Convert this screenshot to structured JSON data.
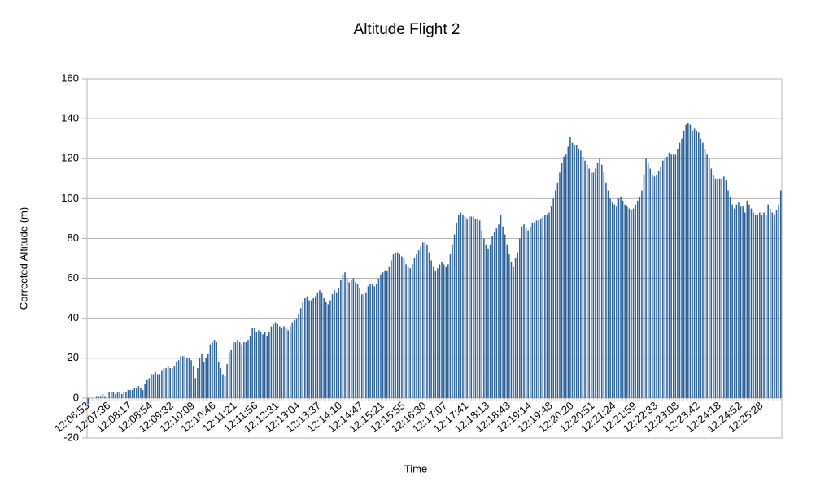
{
  "chart_data": {
    "type": "bar",
    "title": "Altitude Flight 2",
    "x_label": "Time",
    "y_label": "Corrected Altitude (m)",
    "color": "#2a6099",
    "grid": true,
    "ylim": [
      -20,
      160
    ],
    "yticks": [
      -20,
      0,
      20,
      40,
      60,
      80,
      100,
      120,
      140,
      160
    ],
    "categories": [
      "12:06:53",
      null,
      null,
      null,
      null,
      null,
      null,
      null,
      null,
      null,
      "12:07:36",
      null,
      null,
      null,
      null,
      null,
      null,
      null,
      null,
      null,
      "12:08:17",
      null,
      null,
      null,
      null,
      null,
      null,
      null,
      null,
      null,
      "12:08:54",
      null,
      null,
      null,
      null,
      null,
      null,
      null,
      null,
      null,
      "12:09:32",
      null,
      null,
      null,
      null,
      null,
      null,
      null,
      null,
      null,
      "12:10:09",
      null,
      null,
      null,
      null,
      null,
      null,
      null,
      null,
      null,
      "12:10:46",
      null,
      null,
      null,
      null,
      null,
      null,
      null,
      null,
      null,
      "12:11:21",
      null,
      null,
      null,
      null,
      null,
      null,
      null,
      null,
      null,
      "12:11:56",
      null,
      null,
      null,
      null,
      null,
      null,
      null,
      null,
      null,
      "12:12:31",
      null,
      null,
      null,
      null,
      null,
      null,
      null,
      null,
      null,
      "12:13:04",
      null,
      null,
      null,
      null,
      null,
      null,
      null,
      null,
      null,
      "12:13:37",
      null,
      null,
      null,
      null,
      null,
      null,
      null,
      null,
      null,
      "12:14:10",
      null,
      null,
      null,
      null,
      null,
      null,
      null,
      null,
      null,
      "12:14:47",
      null,
      null,
      null,
      null,
      null,
      null,
      null,
      null,
      null,
      "12:15:21",
      null,
      null,
      null,
      null,
      null,
      null,
      null,
      null,
      null,
      "12:15:55",
      null,
      null,
      null,
      null,
      null,
      null,
      null,
      null,
      null,
      "12:16:30",
      null,
      null,
      null,
      null,
      null,
      null,
      null,
      null,
      null,
      "12:17:07",
      null,
      null,
      null,
      null,
      null,
      null,
      null,
      null,
      null,
      "12:17:41",
      null,
      null,
      null,
      null,
      null,
      null,
      null,
      null,
      null,
      "12:18:13",
      null,
      null,
      null,
      null,
      null,
      null,
      null,
      null,
      null,
      "12:18:43",
      null,
      null,
      null,
      null,
      null,
      null,
      null,
      null,
      null,
      "12:19:14",
      null,
      null,
      null,
      null,
      null,
      null,
      null,
      null,
      null,
      "12:19:48",
      null,
      null,
      null,
      null,
      null,
      null,
      null,
      null,
      null,
      "12:20:20",
      null,
      null,
      null,
      null,
      null,
      null,
      null,
      null,
      null,
      "12:20:51",
      null,
      null,
      null,
      null,
      null,
      null,
      null,
      null,
      null,
      "12:21:24",
      null,
      null,
      null,
      null,
      null,
      null,
      null,
      null,
      null,
      "12:21:59",
      null,
      null,
      null,
      null,
      null,
      null,
      null,
      null,
      null,
      "12:22:33",
      null,
      null,
      null,
      null,
      null,
      null,
      null,
      null,
      null,
      "12:23:08",
      null,
      null,
      null,
      null,
      null,
      null,
      null,
      null,
      null,
      "12:23:42",
      null,
      null,
      null,
      null,
      null,
      null,
      null,
      null,
      null,
      "12:24:18",
      null,
      null,
      null,
      null,
      null,
      null,
      null,
      null,
      null,
      "12:24:52",
      null,
      null,
      null,
      null,
      null,
      null,
      null,
      null,
      null,
      "12:25:28",
      null,
      null,
      null,
      null,
      null,
      null,
      null,
      null,
      null
    ],
    "values": [
      -3,
      0,
      0,
      0,
      1,
      1,
      1,
      2,
      1,
      0,
      3,
      3,
      3,
      2,
      3,
      3,
      2,
      3,
      3,
      4,
      4,
      4,
      5,
      5,
      6,
      5,
      4,
      7,
      9,
      10,
      12,
      12,
      13,
      12,
      12,
      14,
      15,
      15,
      16,
      15,
      15,
      16,
      18,
      19,
      21,
      21,
      21,
      20,
      20,
      19,
      16,
      10,
      15,
      20,
      22,
      18,
      20,
      22,
      27,
      28,
      29,
      28,
      18,
      15,
      12,
      11,
      17,
      23,
      24,
      28,
      28,
      29,
      28,
      27,
      28,
      28,
      29,
      31,
      35,
      35,
      33,
      34,
      33,
      32,
      33,
      31,
      33,
      36,
      37,
      38,
      37,
      36,
      35,
      36,
      35,
      34,
      36,
      38,
      39,
      40,
      42,
      45,
      48,
      50,
      51,
      49,
      49,
      50,
      51,
      53,
      54,
      53,
      50,
      48,
      47,
      49,
      52,
      54,
      53,
      55,
      59,
      62,
      63,
      60,
      58,
      59,
      60,
      58,
      57,
      55,
      52,
      52,
      53,
      56,
      57,
      57,
      56,
      57,
      60,
      62,
      63,
      64,
      64,
      66,
      69,
      72,
      73,
      73,
      72,
      71,
      70,
      67,
      66,
      65,
      67,
      70,
      72,
      74,
      76,
      78,
      78,
      77,
      73,
      69,
      66,
      64,
      65,
      67,
      68,
      67,
      66,
      67,
      72,
      77,
      82,
      88,
      92,
      93,
      92,
      91,
      90,
      91,
      91,
      91,
      90,
      90,
      89,
      84,
      80,
      77,
      75,
      77,
      81,
      83,
      85,
      87,
      92,
      86,
      82,
      77,
      72,
      68,
      66,
      70,
      73,
      80,
      86,
      87,
      85,
      84,
      86,
      88,
      88,
      89,
      89,
      90,
      91,
      92,
      92,
      93,
      96,
      100,
      104,
      108,
      113,
      118,
      121,
      122,
      126,
      131,
      128,
      127,
      127,
      125,
      124,
      121,
      119,
      117,
      115,
      113,
      113,
      115,
      118,
      120,
      117,
      113,
      108,
      104,
      100,
      98,
      97,
      96,
      100,
      101,
      99,
      97,
      96,
      95,
      94,
      95,
      97,
      99,
      101,
      104,
      112,
      120,
      118,
      115,
      112,
      111,
      112,
      114,
      116,
      119,
      120,
      121,
      123,
      122,
      122,
      122,
      125,
      128,
      130,
      134,
      137,
      138,
      137,
      134,
      135,
      134,
      133,
      130,
      128,
      125,
      122,
      120,
      115,
      112,
      110,
      110,
      110,
      110,
      111,
      109,
      104,
      101,
      97,
      95,
      97,
      98,
      96,
      96,
      93,
      99,
      97,
      95,
      93,
      92,
      92,
      93,
      92,
      93,
      92,
      97,
      95,
      93,
      92,
      94,
      97,
      104
    ]
  }
}
